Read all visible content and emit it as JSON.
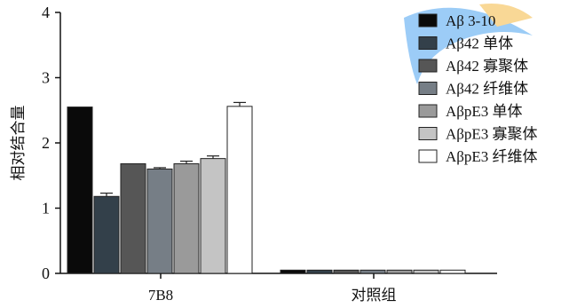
{
  "chart_data": {
    "type": "bar",
    "categories": [
      "7B8",
      "对照组"
    ],
    "series": [
      {
        "name": "Aβ 3-10",
        "values": [
          2.55,
          0.05
        ],
        "errors": [
          0.0,
          0.0
        ],
        "color": "#0a0a0a"
      },
      {
        "name": "Aβ42 单体",
        "values": [
          1.18,
          0.05
        ],
        "errors": [
          0.05,
          0.0
        ],
        "color": "#33404a"
      },
      {
        "name": "Aβ42 寡聚体",
        "values": [
          1.68,
          0.05
        ],
        "errors": [
          0.0,
          0.0
        ],
        "color": "#565656"
      },
      {
        "name": "Aβ42 纤维体",
        "values": [
          1.6,
          0.05
        ],
        "errors": [
          0.02,
          0.0
        ],
        "color": "#767e86"
      },
      {
        "name": "AβpE3 单体",
        "values": [
          1.68,
          0.05
        ],
        "errors": [
          0.04,
          0.0
        ],
        "color": "#9a9a9a"
      },
      {
        "name": "AβpE3 寡聚体",
        "values": [
          1.76,
          0.05
        ],
        "errors": [
          0.04,
          0.0
        ],
        "color": "#c4c4c4"
      },
      {
        "name": "AβpE3 纤维体",
        "values": [
          2.56,
          0.05
        ],
        "errors": [
          0.06,
          0.0
        ],
        "color": "#ffffff"
      }
    ],
    "ylabel": "相对结合量",
    "ylim": [
      0,
      4
    ],
    "yticks": [
      0,
      1,
      2,
      3,
      4
    ],
    "legend_position": "top-right",
    "grid": false
  }
}
